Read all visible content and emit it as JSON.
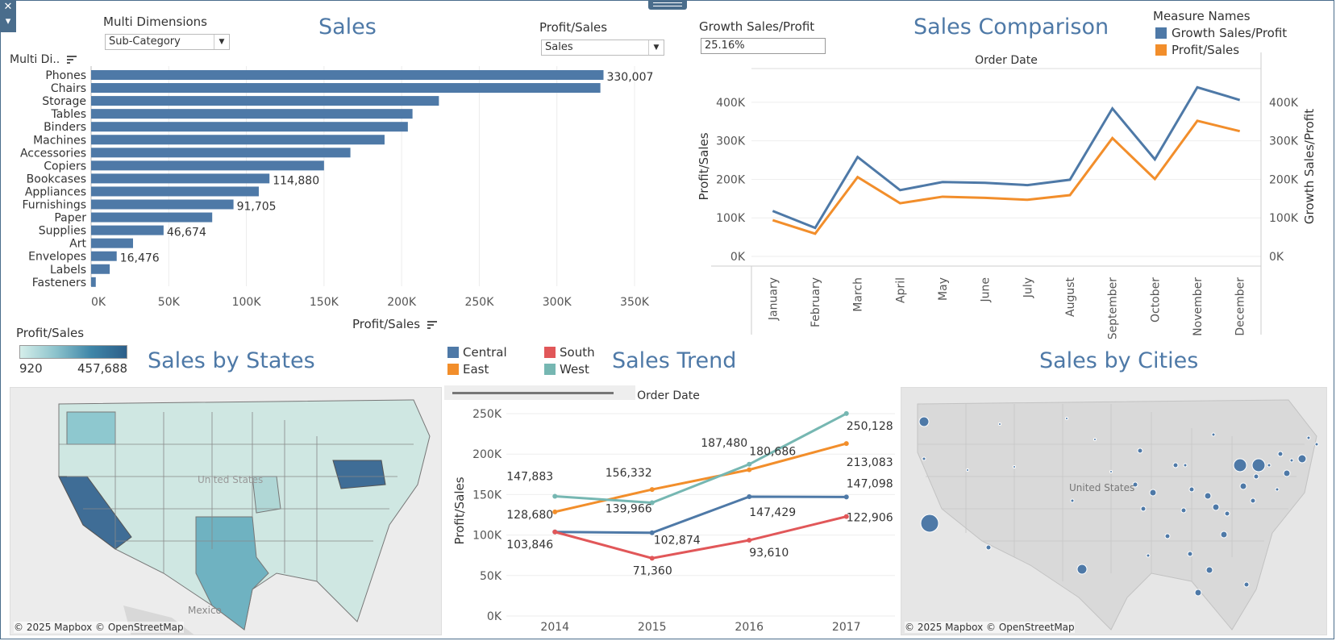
{
  "controls": {
    "multi_dimensions_label": "Multi Dimensions",
    "multi_dimensions_value": "Sub-Category",
    "profit_sales_label": "Profit/Sales",
    "profit_sales_value": "Sales",
    "growth_label": "Growth Sales/Profit",
    "growth_value": "25.16%"
  },
  "sales_panel": {
    "title": "Sales",
    "row_header": "Multi Di..",
    "axis_title": "Profit/Sales"
  },
  "comparison_panel": {
    "title": "Sales  Comparison",
    "axis_top": "Order Date",
    "left_axis_label": "Profit/Sales",
    "right_axis_label": "Growth Sales/Profit",
    "legend_title": "Measure Names",
    "legend": [
      {
        "name": "Growth Sales/Profit",
        "color": "#4e79a7"
      },
      {
        "name": "Profit/Sales",
        "color": "#f28e2b"
      }
    ]
  },
  "states_panel": {
    "title": "Sales by States",
    "legend_title": "Profit/Sales",
    "legend_min": "920",
    "legend_max": "457,688",
    "map_label": "United States",
    "mexico_label": "Mexico",
    "attribution": "© 2025 Mapbox © OpenStreetMap"
  },
  "trend_panel": {
    "title": "Sales Trend",
    "axis_top": "Order Date",
    "y_label": "Profit/Sales",
    "legend": [
      {
        "name": "Central",
        "color": "#4e79a7"
      },
      {
        "name": "South",
        "color": "#e15759"
      },
      {
        "name": "East",
        "color": "#f28e2b"
      },
      {
        "name": "West",
        "color": "#76b7b2"
      }
    ]
  },
  "cities_panel": {
    "title": "Sales by Cities",
    "map_label": "United States",
    "attribution": "© 2025 Mapbox © OpenStreetMap"
  },
  "chart_data": [
    {
      "type": "bar",
      "title": "Sales",
      "orientation": "horizontal",
      "xlabel": "Profit/Sales",
      "ylabel": "Multi Di..",
      "xlim": [
        0,
        350000
      ],
      "x_ticks": [
        "0K",
        "50K",
        "100K",
        "150K",
        "200K",
        "250K",
        "300K",
        "350K"
      ],
      "x_tick_values": [
        0,
        50000,
        100000,
        150000,
        200000,
        250000,
        300000,
        350000
      ],
      "categories": [
        "Phones",
        "Chairs",
        "Storage",
        "Tables",
        "Binders",
        "Machines",
        "Accessories",
        "Copiers",
        "Bookcases",
        "Appliances",
        "Furnishings",
        "Paper",
        "Supplies",
        "Art",
        "Envelopes",
        "Labels",
        "Fasteners"
      ],
      "values": [
        330007,
        328000,
        224000,
        207000,
        204000,
        189000,
        167000,
        150000,
        114880,
        108000,
        91705,
        78000,
        46674,
        27000,
        16476,
        12000,
        3000
      ],
      "data_labels": {
        "Phones": "330,007",
        "Bookcases": "114,880",
        "Furnishings": "91,705",
        "Supplies": "46,674",
        "Envelopes": "16,476"
      },
      "color": "#4e79a7",
      "grid": true
    },
    {
      "type": "line",
      "title": "Sales  Comparison",
      "x": [
        "January",
        "February",
        "March",
        "April",
        "May",
        "June",
        "July",
        "August",
        "September",
        "October",
        "November",
        "December"
      ],
      "xlabel": "Order Date",
      "ylabel": "Profit/Sales",
      "ylabel_right": "Growth Sales/Profit",
      "ylim": [
        0,
        450000
      ],
      "y_ticks": [
        "0K",
        "100K",
        "200K",
        "300K",
        "400K"
      ],
      "y_tick_values": [
        0,
        100000,
        200000,
        300000,
        400000
      ],
      "series": [
        {
          "name": "Growth Sales/Profit",
          "color": "#4e79a7",
          "values": [
            118000,
            74000,
            258000,
            172000,
            193000,
            191000,
            185000,
            199000,
            384000,
            252000,
            439000,
            406000
          ]
        },
        {
          "name": "Profit/Sales",
          "color": "#f28e2b",
          "values": [
            94000,
            59000,
            206000,
            138000,
            155000,
            152000,
            147000,
            159000,
            307000,
            201000,
            352000,
            325000
          ]
        }
      ],
      "legend": "top-right",
      "grid": true
    },
    {
      "type": "line",
      "title": "Sales Trend",
      "x": [
        "2014",
        "2015",
        "2016",
        "2017"
      ],
      "xlabel": "Order Date",
      "ylabel": "Profit/Sales",
      "ylim": [
        0,
        260000
      ],
      "y_ticks": [
        "0K",
        "50K",
        "100K",
        "150K",
        "200K",
        "250K"
      ],
      "y_tick_values": [
        0,
        50000,
        100000,
        150000,
        200000,
        250000
      ],
      "series": [
        {
          "name": "Central",
          "color": "#4e79a7",
          "values": [
            103846,
            102874,
            147429,
            147098
          ]
        },
        {
          "name": "South",
          "color": "#e15759",
          "values": [
            103846,
            71360,
            93610,
            122906
          ]
        },
        {
          "name": "East",
          "color": "#f28e2b",
          "values": [
            128680,
            156332,
            180686,
            213083
          ]
        },
        {
          "name": "West",
          "color": "#76b7b2",
          "values": [
            147883,
            139966,
            187480,
            250128
          ]
        }
      ],
      "point_labels": [
        {
          "series": "West",
          "index": 0,
          "text": "147,883"
        },
        {
          "series": "East",
          "index": 0,
          "text": "128,680"
        },
        {
          "series": "Central",
          "index": 0,
          "text": "103,846"
        },
        {
          "series": "East",
          "index": 1,
          "text": "156,332"
        },
        {
          "series": "West",
          "index": 1,
          "text": "139,966"
        },
        {
          "series": "Central",
          "index": 1,
          "text": "102,874"
        },
        {
          "series": "South",
          "index": 1,
          "text": "71,360"
        },
        {
          "series": "West",
          "index": 2,
          "text": "187,480"
        },
        {
          "series": "East",
          "index": 2,
          "text": "180,686"
        },
        {
          "series": "Central",
          "index": 2,
          "text": "147,429"
        },
        {
          "series": "South",
          "index": 2,
          "text": "93,610"
        },
        {
          "series": "West",
          "index": 3,
          "text": "250,128"
        },
        {
          "series": "East",
          "index": 3,
          "text": "213,083"
        },
        {
          "series": "Central",
          "index": 3,
          "text": "147,098"
        },
        {
          "series": "South",
          "index": 3,
          "text": "122,906"
        }
      ],
      "grid": true
    }
  ]
}
